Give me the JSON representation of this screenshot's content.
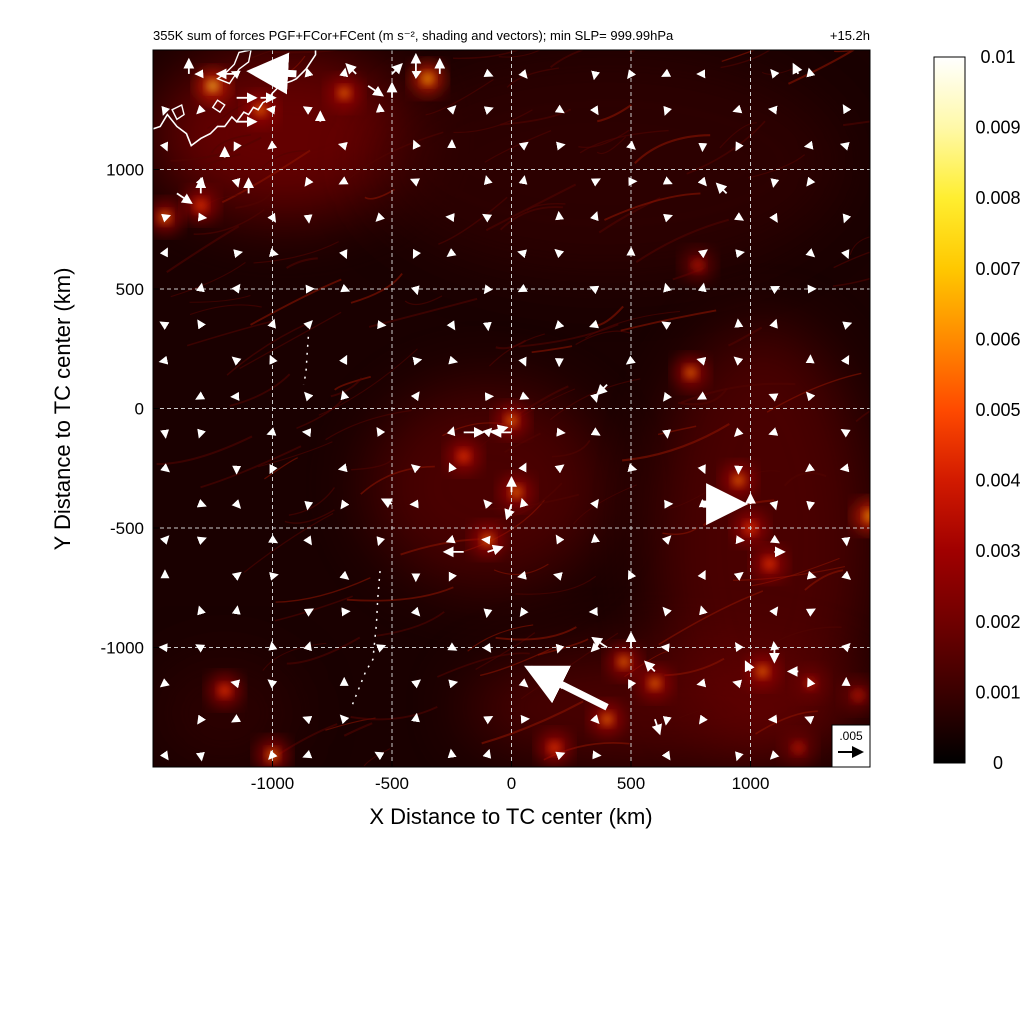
{
  "chart_data": {
    "type": "heatmap",
    "title": "355K sum of forces PGF+FCor+FCent (m s⁻², shading and vectors); min SLP= 999.99hPa",
    "title_right": "+15.2h",
    "xlabel": "X Distance to TC center (km)",
    "ylabel": "Y Distance to TC center (km)",
    "xlim": [
      -1500,
      1500
    ],
    "ylim": [
      -1500,
      1500
    ],
    "xticks": [
      -1000,
      -500,
      0,
      500,
      1000
    ],
    "yticks": [
      -1000,
      -500,
      0,
      500,
      1000
    ],
    "xtick_labels": [
      "-1000",
      "-500",
      "0",
      "500",
      "1000"
    ],
    "ytick_labels": [
      "-1000",
      "-500",
      "0",
      "500",
      "1000"
    ],
    "grid": true,
    "colorbar": {
      "min": 0,
      "max": 0.01,
      "ticks": [
        0,
        0.001,
        0.002,
        0.003,
        0.004,
        0.005,
        0.006,
        0.007,
        0.008,
        0.009,
        0.01
      ],
      "tick_labels": [
        "0",
        "0.001",
        "0.002",
        "0.003",
        "0.004",
        "0.005",
        "0.006",
        "0.007",
        "0.008",
        "0.009",
        "0.01"
      ],
      "colormap": [
        "#000000",
        "#3a0000",
        "#700000",
        "#a00000",
        "#d21a00",
        "#ff4a00",
        "#ff8a00",
        "#ffc800",
        "#ffee30",
        "#fff9a8",
        "#ffffff"
      ]
    },
    "reference_vector": {
      "label": ".005",
      "magnitude": 0.005
    },
    "hotspots": [
      {
        "x": -1250,
        "y": 1350,
        "v": 0.008
      },
      {
        "x": -1050,
        "y": 1250,
        "v": 0.006
      },
      {
        "x": -700,
        "y": 1320,
        "v": 0.006
      },
      {
        "x": -350,
        "y": 1380,
        "v": 0.007
      },
      {
        "x": -1300,
        "y": 850,
        "v": 0.005
      },
      {
        "x": -1450,
        "y": 800,
        "v": 0.006
      },
      {
        "x": 0,
        "y": -50,
        "v": 0.006
      },
      {
        "x": -200,
        "y": -200,
        "v": 0.005
      },
      {
        "x": 20,
        "y": -350,
        "v": 0.006
      },
      {
        "x": -100,
        "y": -550,
        "v": 0.006
      },
      {
        "x": 950,
        "y": -300,
        "v": 0.006
      },
      {
        "x": 1000,
        "y": -500,
        "v": 0.005
      },
      {
        "x": 1500,
        "y": -450,
        "v": 0.007
      },
      {
        "x": 1050,
        "y": -1100,
        "v": 0.006
      },
      {
        "x": 470,
        "y": -1060,
        "v": 0.006
      },
      {
        "x": 600,
        "y": -1150,
        "v": 0.006
      },
      {
        "x": 400,
        "y": -1300,
        "v": 0.006
      },
      {
        "x": 180,
        "y": -1420,
        "v": 0.005
      },
      {
        "x": -1200,
        "y": -1180,
        "v": 0.005
      },
      {
        "x": 750,
        "y": 150,
        "v": 0.006
      },
      {
        "x": 780,
        "y": 600,
        "v": 0.004
      },
      {
        "x": 1250,
        "y": -1150,
        "v": 0.004
      },
      {
        "x": -1000,
        "y": -1450,
        "v": 0.006
      },
      {
        "x": 1450,
        "y": -1200,
        "v": 0.004
      },
      {
        "x": 1080,
        "y": -650,
        "v": 0.005
      },
      {
        "x": 1200,
        "y": -1420,
        "v": 0.004
      }
    ],
    "bands": [
      {
        "x1": -1500,
        "y1": 800,
        "x2": -400,
        "y2": 1500,
        "v": 0.003
      },
      {
        "x1": -600,
        "y1": 550,
        "x2": 1400,
        "y2": 1500,
        "v": 0.0012
      },
      {
        "x1": -600,
        "y1": -750,
        "x2": 400,
        "y2": 100,
        "v": 0.0015
      },
      {
        "x1": 600,
        "y1": -1450,
        "x2": 1500,
        "y2": 350,
        "v": 0.0015
      },
      {
        "x1": -200,
        "y1": -1500,
        "x2": 1500,
        "y2": -1000,
        "v": 0.002
      },
      {
        "x1": -1500,
        "y1": -1500,
        "x2": -900,
        "y2": -1050,
        "v": 0.0012
      }
    ],
    "vectors": [
      {
        "x": -900,
        "y": 1400,
        "u": -0.009,
        "v": 0.0005,
        "big": true
      },
      {
        "x": -1150,
        "y": 1400,
        "u": -0.004,
        "v": 0.0
      },
      {
        "x": -1150,
        "y": 1300,
        "u": 0.004,
        "v": 0.0
      },
      {
        "x": -1150,
        "y": 1200,
        "u": 0.004,
        "v": 0.0
      },
      {
        "x": -1050,
        "y": 1300,
        "u": 0.003,
        "v": 0.0
      },
      {
        "x": -1350,
        "y": 1400,
        "u": 0.0,
        "v": 0.003
      },
      {
        "x": -1200,
        "y": 1050,
        "u": 0.0,
        "v": 0.002
      },
      {
        "x": -1300,
        "y": 900,
        "u": 0.0,
        "v": 0.003
      },
      {
        "x": -1400,
        "y": 900,
        "u": 0.003,
        "v": -0.002
      },
      {
        "x": -1100,
        "y": 900,
        "u": 0.0,
        "v": 0.003
      },
      {
        "x": -800,
        "y": 1200,
        "u": 0.0,
        "v": 0.002
      },
      {
        "x": -600,
        "y": 1350,
        "u": 0.003,
        "v": -0.002
      },
      {
        "x": -500,
        "y": 1400,
        "u": 0.002,
        "v": 0.002
      },
      {
        "x": -400,
        "y": 1400,
        "u": 0.0,
        "v": 0.004
      },
      {
        "x": -500,
        "y": 1300,
        "u": 0.0,
        "v": 0.003
      },
      {
        "x": -300,
        "y": 1400,
        "u": 0.0,
        "v": 0.003
      },
      {
        "x": -650,
        "y": 1400,
        "u": -0.002,
        "v": 0.002
      },
      {
        "x": 0,
        "y": -100,
        "u": -0.004,
        "v": 0.0
      },
      {
        "x": -200,
        "y": -100,
        "u": 0.004,
        "v": 0.0
      },
      {
        "x": -100,
        "y": -100,
        "u": 0.004,
        "v": 0.001
      },
      {
        "x": 0,
        "y": -400,
        "u": -0.001,
        "v": -0.003
      },
      {
        "x": 0,
        "y": -350,
        "u": 0.0,
        "v": 0.003
      },
      {
        "x": -200,
        "y": -600,
        "u": -0.004,
        "v": 0.0
      },
      {
        "x": -100,
        "y": -600,
        "u": 0.003,
        "v": 0.001
      },
      {
        "x": 800,
        "y": -400,
        "u": 0.008,
        "v": 0.0,
        "big": true
      },
      {
        "x": 400,
        "y": -1250,
        "u": -0.016,
        "v": 0.008,
        "big": true
      },
      {
        "x": 600,
        "y": -1300,
        "u": 0.001,
        "v": -0.003
      },
      {
        "x": 500,
        "y": -1000,
        "u": 0.0,
        "v": 0.003
      },
      {
        "x": 400,
        "y": -1000,
        "u": -0.003,
        "v": 0.002
      },
      {
        "x": 600,
        "y": -1100,
        "u": -0.002,
        "v": 0.002
      },
      {
        "x": 400,
        "y": 100,
        "u": -0.002,
        "v": -0.002
      },
      {
        "x": -500,
        "y": -400,
        "u": -0.002,
        "v": 0.001
      },
      {
        "x": 1000,
        "y": -400,
        "u": 0.0,
        "v": 0.002
      },
      {
        "x": 1100,
        "y": -600,
        "u": 0.002,
        "v": 0.0
      },
      {
        "x": 1100,
        "y": -1000,
        "u": 0.0,
        "v": -0.003
      },
      {
        "x": 1200,
        "y": -1100,
        "u": -0.002,
        "v": 0.0
      },
      {
        "x": 1000,
        "y": -1100,
        "u": -0.001,
        "v": 0.002
      },
      {
        "x": 900,
        "y": 900,
        "u": -0.002,
        "v": 0.002
      },
      {
        "x": 1200,
        "y": 1400,
        "u": -0.001,
        "v": 0.002
      }
    ],
    "coastline": [
      [
        -1500,
        1170
      ],
      [
        -1470,
        1180
      ],
      [
        -1440,
        1230
      ],
      [
        -1400,
        1180
      ],
      [
        -1360,
        1150
      ],
      [
        -1340,
        1100
      ],
      [
        -1300,
        1130
      ],
      [
        -1260,
        1150
      ],
      [
        -1230,
        1180
      ],
      [
        -1200,
        1180
      ],
      [
        -1170,
        1220
      ],
      [
        -1150,
        1200
      ],
      [
        -1120,
        1240
      ],
      [
        -1100,
        1230
      ],
      [
        -1080,
        1260
      ],
      [
        -1060,
        1250
      ],
      [
        -1040,
        1280
      ],
      [
        -1020,
        1290
      ],
      [
        -1000,
        1320
      ],
      [
        -980,
        1340
      ],
      [
        -950,
        1360
      ],
      [
        -920,
        1370
      ],
      [
        -900,
        1380
      ],
      [
        -880,
        1400
      ],
      [
        -860,
        1420
      ],
      [
        -840,
        1450
      ],
      [
        -820,
        1480
      ],
      [
        -820,
        1500
      ]
    ],
    "islands": [
      [
        [
          -1180,
          1360
        ],
        [
          -1140,
          1420
        ],
        [
          -1100,
          1450
        ],
        [
          -1090,
          1500
        ],
        [
          -1140,
          1490
        ],
        [
          -1160,
          1440
        ],
        [
          -1200,
          1400
        ],
        [
          -1230,
          1380
        ]
      ],
      [
        [
          -1420,
          1250
        ],
        [
          -1400,
          1210
        ],
        [
          -1370,
          1230
        ],
        [
          -1380,
          1270
        ]
      ],
      [
        [
          -1250,
          1260
        ],
        [
          -1220,
          1240
        ],
        [
          -1200,
          1270
        ],
        [
          -1230,
          1290
        ]
      ]
    ],
    "dotted_lines": [
      [
        [
          -850,
          300
        ],
        [
          -855,
          230
        ],
        [
          -860,
          150
        ],
        [
          -870,
          100
        ]
      ],
      [
        [
          -550,
          -680
        ],
        [
          -560,
          -800
        ],
        [
          -565,
          -900
        ],
        [
          -580,
          -1050
        ],
        [
          -610,
          -1100
        ],
        [
          -650,
          -1200
        ],
        [
          -670,
          -1250
        ]
      ]
    ]
  }
}
